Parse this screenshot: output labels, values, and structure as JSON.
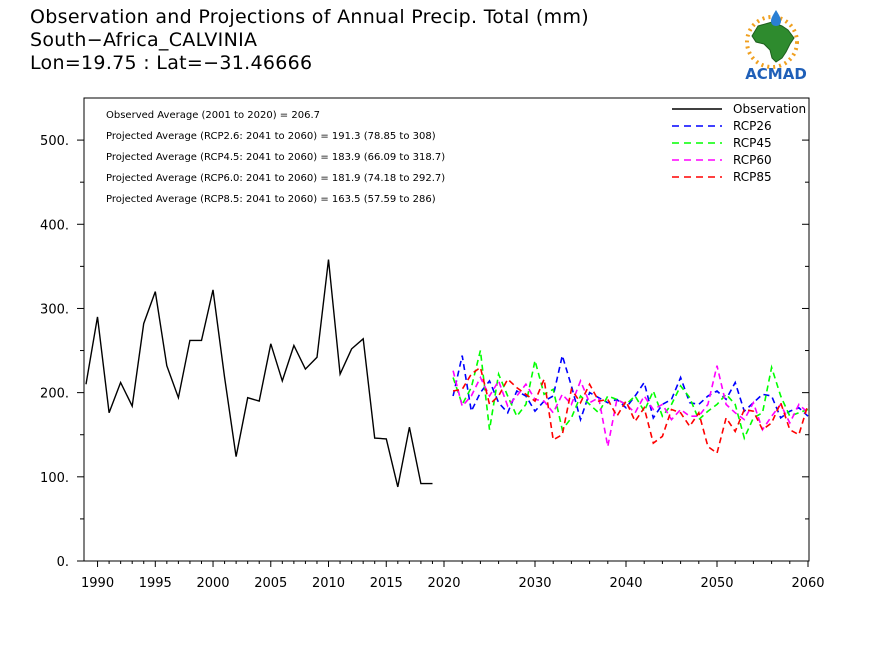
{
  "header": {
    "line1": "Observation and Projections of Annual Precip. Total (mm)",
    "line2": "South−Africa_CALVINIA",
    "line3": "Lon=19.75 : Lat=−31.46666"
  },
  "logo": {
    "text": "ACMAD",
    "icon": "africa-drop-logo"
  },
  "stats": [
    "Observed Average (2001 to 2020) = 206.7",
    "Projected Average (RCP2.6: 2041 to 2060) = 191.3 (78.85 to 308)",
    "Projected Average (RCP4.5: 2041 to 2060) = 183.9 (66.09 to 318.7)",
    "Projected Average (RCP6.0: 2041 to 2060) = 181.9 (74.18 to 292.7)",
    "Projected Average (RCP8.5: 2041 to 2060) = 163.5 (57.59 to 286)"
  ],
  "legend": [
    {
      "label": "Observation",
      "color": "#000000",
      "dash": false
    },
    {
      "label": "RCP26",
      "color": "#0000ff",
      "dash": true
    },
    {
      "label": "RCP45",
      "color": "#00ff00",
      "dash": true
    },
    {
      "label": "RCP60",
      "color": "#ff00ff",
      "dash": true
    },
    {
      "label": "RCP85",
      "color": "#ff0000",
      "dash": true
    }
  ],
  "chart_data": {
    "type": "line",
    "title": "Observation and Projections of Annual Precip. Total (mm)",
    "xlabel": "",
    "ylabel": "",
    "xlim": [
      1989,
      2060
    ],
    "ylim": [
      0,
      550
    ],
    "y_ticks": [
      0,
      100,
      200,
      300,
      400,
      500
    ],
    "y_tick_labels": [
      "0.",
      "100.",
      "200.",
      "300.",
      "400.",
      "500."
    ],
    "x_ticks_obs": [
      1990,
      1995,
      2000,
      2005,
      2010,
      2015,
      2020
    ],
    "x_ticks_proj": [
      2030,
      2040,
      2050,
      2060
    ],
    "legend_position": "top-right",
    "series": [
      {
        "name": "Observation",
        "color": "#000000",
        "x": [
          1989,
          1990,
          1991,
          1992,
          1993,
          1994,
          1995,
          1996,
          1997,
          1998,
          1999,
          2000,
          2001,
          2002,
          2003,
          2004,
          2005,
          2006,
          2007,
          2008,
          2009,
          2010,
          2011,
          2012,
          2013,
          2014,
          2015,
          2016,
          2017,
          2018,
          2019
        ],
        "values": [
          210,
          290,
          176,
          212,
          184,
          282,
          320,
          232,
          194,
          262,
          262,
          322,
          218,
          124,
          194,
          190,
          258,
          214,
          256,
          228,
          242,
          358,
          222,
          252,
          264,
          146,
          145,
          88,
          159,
          92,
          92
        ]
      },
      {
        "name": "RCP26",
        "color": "#0000ff",
        "x": [
          2021,
          2022,
          2023,
          2024,
          2025,
          2026,
          2027,
          2028,
          2029,
          2030,
          2031,
          2032,
          2033,
          2034,
          2035,
          2036,
          2037,
          2038,
          2039,
          2040,
          2041,
          2042,
          2043,
          2044,
          2045,
          2046,
          2047,
          2048,
          2049,
          2050,
          2051,
          2052,
          2053,
          2054,
          2055,
          2056,
          2057,
          2058,
          2059,
          2060
        ],
        "values": [
          196,
          244,
          178,
          200,
          214,
          188,
          176,
          202,
          196,
          178,
          190,
          196,
          244,
          208,
          168,
          200,
          194,
          188,
          192,
          182,
          196,
          212,
          170,
          186,
          192,
          218,
          188,
          186,
          196,
          202,
          192,
          212,
          178,
          188,
          198,
          196,
          170,
          178,
          182,
          172
        ]
      },
      {
        "name": "RCP45",
        "color": "#00ff00",
        "x": [
          2021,
          2022,
          2023,
          2024,
          2025,
          2026,
          2027,
          2028,
          2029,
          2030,
          2031,
          2032,
          2033,
          2034,
          2035,
          2036,
          2037,
          2038,
          2039,
          2040,
          2041,
          2042,
          2043,
          2044,
          2045,
          2046,
          2047,
          2048,
          2049,
          2050,
          2051,
          2052,
          2053,
          2054,
          2055,
          2056,
          2057,
          2058,
          2059,
          2060
        ],
        "values": [
          218,
          186,
          206,
          250,
          156,
          222,
          196,
          172,
          186,
          238,
          198,
          204,
          156,
          170,
          196,
          186,
          176,
          196,
          192,
          186,
          196,
          178,
          202,
          172,
          186,
          208,
          194,
          168,
          178,
          186,
          198,
          186,
          146,
          170,
          176,
          230,
          196,
          172,
          176,
          180
        ]
      },
      {
        "name": "RCP60",
        "color": "#ff00ff",
        "x": [
          2021,
          2022,
          2023,
          2024,
          2025,
          2026,
          2027,
          2028,
          2029,
          2030,
          2031,
          2032,
          2033,
          2034,
          2035,
          2036,
          2037,
          2038,
          2039,
          2040,
          2041,
          2042,
          2043,
          2044,
          2045,
          2046,
          2047,
          2048,
          2049,
          2050,
          2051,
          2052,
          2053,
          2054,
          2055,
          2056,
          2057,
          2058,
          2059,
          2060
        ],
        "values": [
          226,
          184,
          196,
          218,
          196,
          214,
          184,
          196,
          210,
          192,
          190,
          176,
          198,
          186,
          214,
          188,
          194,
          136,
          192,
          186,
          176,
          196,
          180,
          186,
          168,
          180,
          172,
          172,
          186,
          232,
          186,
          176,
          168,
          188,
          156,
          172,
          186,
          164,
          186,
          176
        ]
      },
      {
        "name": "RCP85",
        "color": "#ff0000",
        "x": [
          2021,
          2022,
          2023,
          2024,
          2025,
          2026,
          2027,
          2028,
          2029,
          2030,
          2031,
          2032,
          2033,
          2034,
          2035,
          2036,
          2037,
          2038,
          2039,
          2040,
          2041,
          2042,
          2043,
          2044,
          2045,
          2046,
          2047,
          2048,
          2049,
          2050,
          2051,
          2052,
          2053,
          2054,
          2055,
          2056,
          2057,
          2058,
          2059,
          2060
        ],
        "values": [
          202,
          204,
          222,
          230,
          186,
          196,
          216,
          206,
          198,
          190,
          216,
          144,
          150,
          204,
          188,
          210,
          190,
          192,
          172,
          190,
          166,
          182,
          140,
          148,
          180,
          176,
          160,
          176,
          136,
          128,
          170,
          154,
          180,
          178,
          156,
          164,
          188,
          156,
          150,
          186
        ]
      }
    ]
  }
}
